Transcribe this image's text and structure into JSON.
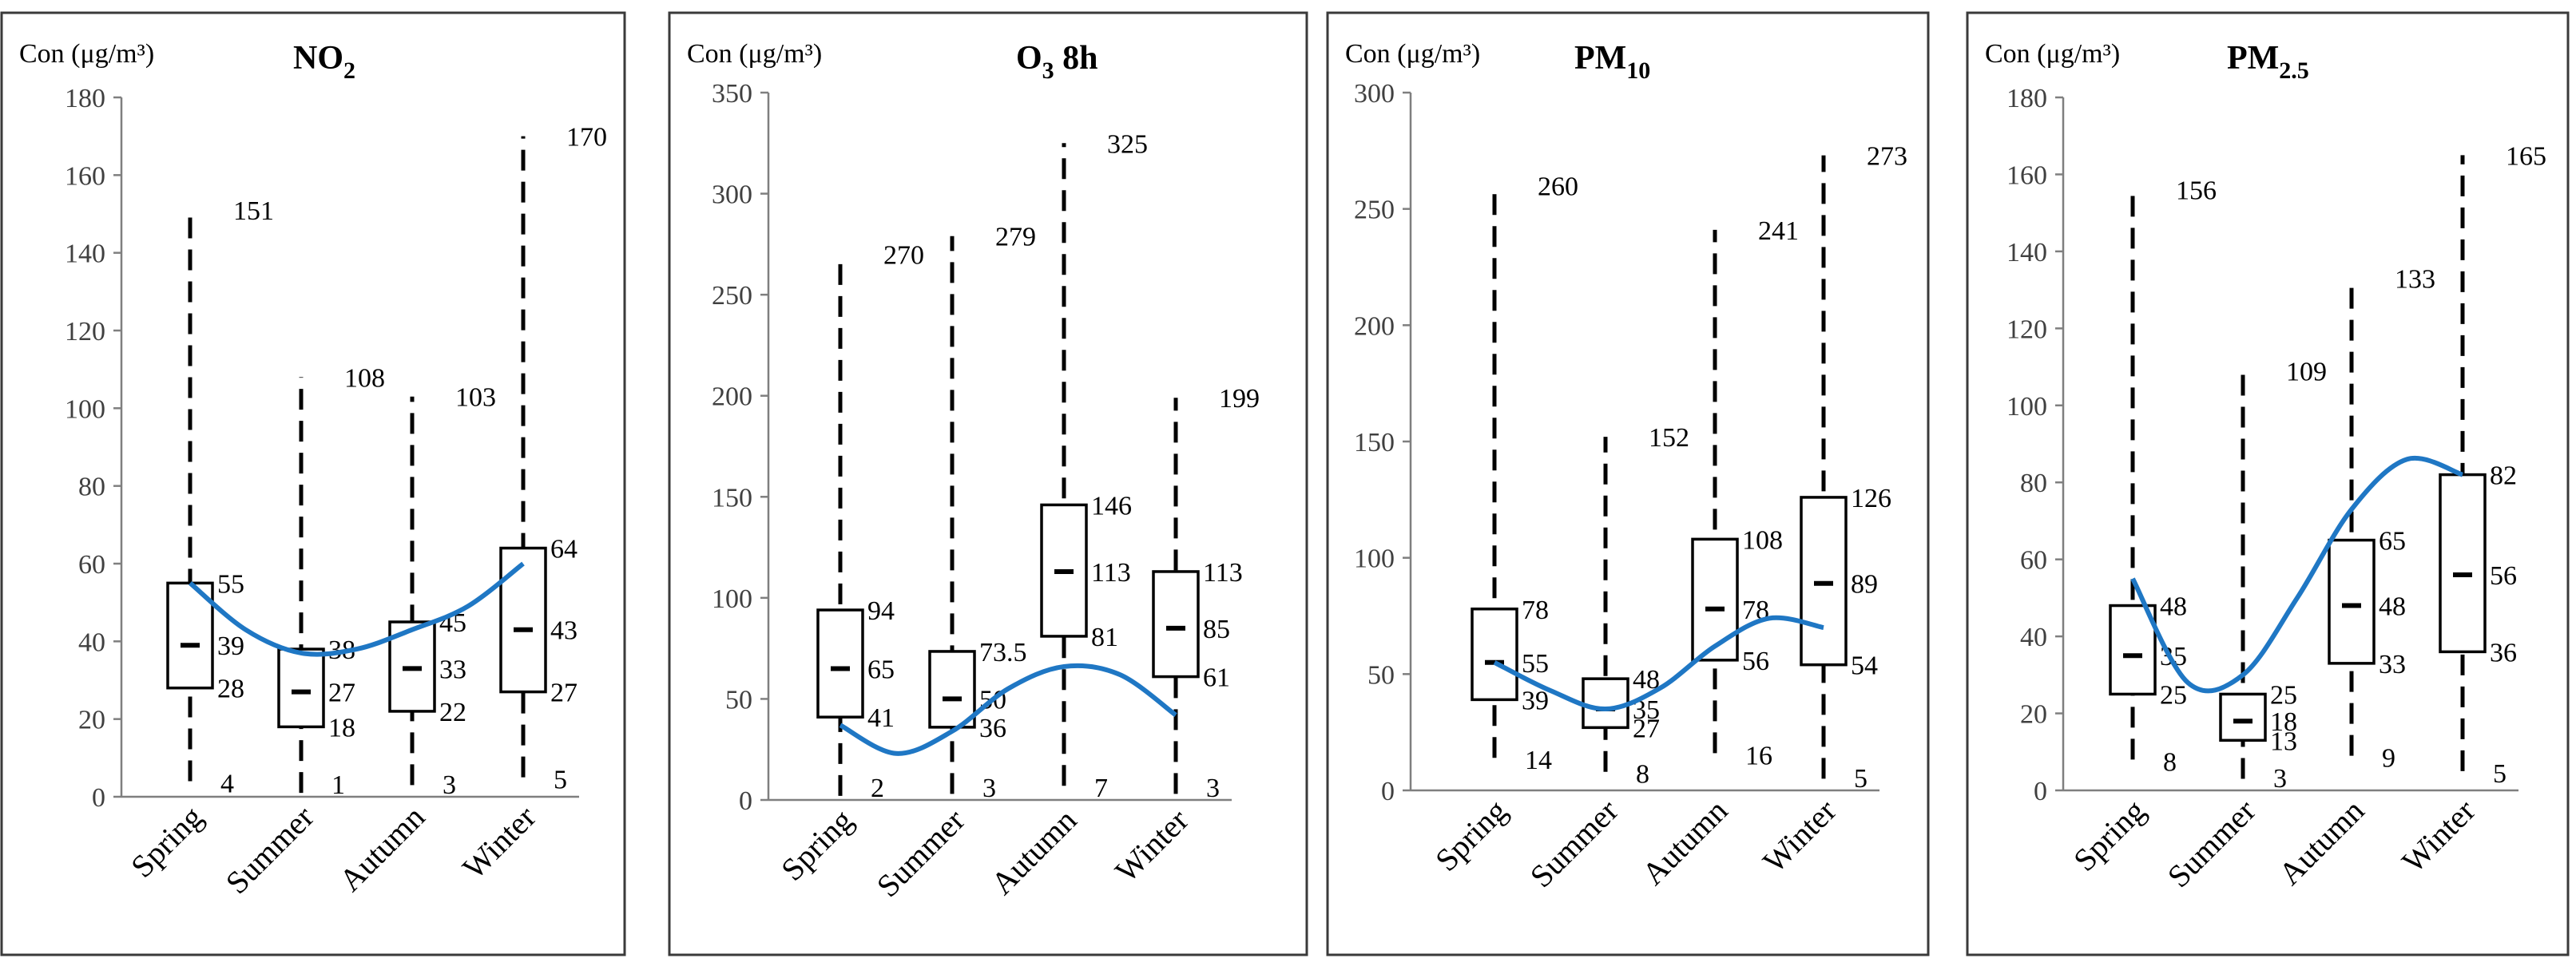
{
  "figure": {
    "ylabel": "Con (μg/m³)",
    "trend_color": "#1f77c4"
  },
  "chart_data": [
    {
      "type": "box",
      "title": "NO",
      "title_subscript": "2",
      "ylabel": "Con (μg/m³)",
      "ylim": [
        0,
        180
      ],
      "yticks": [
        0,
        20,
        40,
        60,
        80,
        100,
        120,
        140,
        160,
        180
      ],
      "categories": [
        "Spring",
        "Summer",
        "Autumn",
        "Winter"
      ],
      "series": [
        {
          "category": "Spring",
          "min": 4,
          "q1": 28,
          "median": 39,
          "q3": 55,
          "max": 151
        },
        {
          "category": "Summer",
          "min": 1,
          "q1": 18,
          "median": 27,
          "q3": 38,
          "max": 108
        },
        {
          "category": "Autumn",
          "min": 3,
          "q1": 22,
          "median": 33,
          "q3": 45,
          "max": 103
        },
        {
          "category": "Winter",
          "min": 5,
          "q1": 27,
          "median": 43,
          "q3": 64,
          "max": 170
        }
      ],
      "trend": [
        [
          0,
          55
        ],
        [
          0.5,
          43
        ],
        [
          1,
          37
        ],
        [
          1.5,
          38
        ],
        [
          2,
          43
        ],
        [
          2.5,
          49
        ],
        [
          3,
          60
        ]
      ]
    },
    {
      "type": "box",
      "title": "O",
      "title_subscript": "3",
      "title_suffix": " 8h",
      "ylabel": "Con (μg/m³)",
      "ylim": [
        0,
        350
      ],
      "yticks": [
        0,
        50,
        100,
        150,
        200,
        250,
        300,
        350
      ],
      "categories": [
        "Spring",
        "Summer",
        "Autumn",
        "Winter"
      ],
      "series": [
        {
          "category": "Spring",
          "min": 2,
          "q1": 41,
          "median": 65,
          "q3": 94,
          "max": 270
        },
        {
          "category": "Summer",
          "min": 3,
          "q1": 36,
          "median": 50,
          "q3": 73.5,
          "max": 279
        },
        {
          "category": "Autumn",
          "min": 7,
          "q1": 81,
          "median": 113,
          "q3": 146,
          "max": 325
        },
        {
          "category": "Winter",
          "min": 3,
          "q1": 61,
          "median": 85,
          "q3": 113,
          "max": 199
        }
      ],
      "trend": [
        [
          0,
          37
        ],
        [
          0.5,
          23
        ],
        [
          1,
          34
        ],
        [
          1.5,
          55
        ],
        [
          2,
          66
        ],
        [
          2.5,
          62
        ],
        [
          3,
          42
        ]
      ]
    },
    {
      "type": "box",
      "title": "PM",
      "title_subscript": "10",
      "ylabel": "Con (μg/m³)",
      "ylim": [
        0,
        300
      ],
      "yticks": [
        0,
        50,
        100,
        150,
        200,
        250,
        300
      ],
      "categories": [
        "Spring",
        "Summer",
        "Autumn",
        "Winter"
      ],
      "series": [
        {
          "category": "Spring",
          "min": 14,
          "q1": 39,
          "median": 55,
          "q3": 78,
          "max": 260
        },
        {
          "category": "Summer",
          "min": 8,
          "q1": 27,
          "median": 35,
          "q3": 48,
          "max": 152
        },
        {
          "category": "Autumn",
          "min": 16,
          "q1": 56,
          "median": 78,
          "q3": 108,
          "max": 241
        },
        {
          "category": "Winter",
          "min": 5,
          "q1": 54,
          "median": 89,
          "q3": 126,
          "max": 273
        }
      ],
      "trend": [
        [
          0,
          55
        ],
        [
          0.5,
          43
        ],
        [
          1,
          35
        ],
        [
          1.5,
          44
        ],
        [
          2,
          62
        ],
        [
          2.5,
          74
        ],
        [
          3,
          70
        ]
      ]
    },
    {
      "type": "box",
      "title": "PM",
      "title_subscript": "2.5",
      "ylabel": "Con (μg/m³)",
      "ylim": [
        0,
        180
      ],
      "yticks": [
        0,
        20,
        40,
        60,
        80,
        100,
        120,
        140,
        160,
        180
      ],
      "categories": [
        "Spring",
        "Summer",
        "Autumn",
        "Winter"
      ],
      "series": [
        {
          "category": "Spring",
          "min": 8,
          "q1": 25,
          "median": 35,
          "q3": 48,
          "max": 156
        },
        {
          "category": "Summer",
          "min": 3,
          "q1": 13,
          "median": 18,
          "q3": 25,
          "max": 109
        },
        {
          "category": "Autumn",
          "min": 9,
          "q1": 33,
          "median": 48,
          "q3": 65,
          "max": 133
        },
        {
          "category": "Winter",
          "min": 5,
          "q1": 36,
          "median": 56,
          "q3": 82,
          "max": 165
        }
      ],
      "trend": [
        [
          0,
          55
        ],
        [
          0.5,
          28
        ],
        [
          1,
          30
        ],
        [
          1.5,
          50
        ],
        [
          2,
          73
        ],
        [
          2.5,
          86
        ],
        [
          3,
          82
        ]
      ]
    }
  ]
}
